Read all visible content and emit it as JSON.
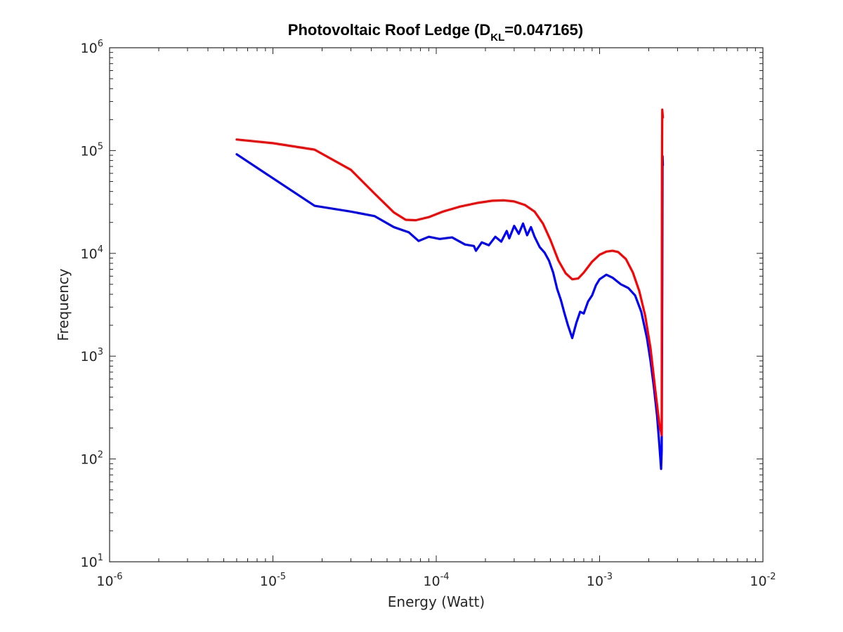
{
  "chart_data": {
    "type": "line",
    "title": {
      "main": "Photovoltaic Roof Ledge (D",
      "subscript": "KL",
      "tail": "=0.047165)"
    },
    "xlabel": "Energy (Watt)",
    "ylabel": "Frequency",
    "xscale": "log",
    "yscale": "log",
    "xlim": [
      1e-06,
      0.01
    ],
    "ylim": [
      10,
      1000000
    ],
    "x_ticks": [
      {
        "base": "10",
        "exp": "-6",
        "value": 1e-06
      },
      {
        "base": "10",
        "exp": "-5",
        "value": 1e-05
      },
      {
        "base": "10",
        "exp": "-4",
        "value": 0.0001
      },
      {
        "base": "10",
        "exp": "-3",
        "value": 0.001
      },
      {
        "base": "10",
        "exp": "-2",
        "value": 0.01
      }
    ],
    "y_ticks": [
      {
        "base": "10",
        "exp": "1",
        "value": 10
      },
      {
        "base": "10",
        "exp": "2",
        "value": 100
      },
      {
        "base": "10",
        "exp": "3",
        "value": 1000
      },
      {
        "base": "10",
        "exp": "4",
        "value": 10000
      },
      {
        "base": "10",
        "exp": "5",
        "value": 100000
      },
      {
        "base": "10",
        "exp": "6",
        "value": 1000000
      }
    ],
    "grid": false,
    "legend": "none",
    "series": [
      {
        "color": "#0000ff",
        "points": [
          [
            6e-06,
            92000
          ],
          [
            1.8e-05,
            29000
          ],
          [
            3e-05,
            25500
          ],
          [
            4.2e-05,
            23000
          ],
          [
            5.5e-05,
            18000
          ],
          [
            6.8e-05,
            16000
          ],
          [
            7.8e-05,
            13200
          ],
          [
            9e-05,
            14500
          ],
          [
            0.000105,
            13800
          ],
          [
            0.000125,
            14300
          ],
          [
            0.00015,
            12200
          ],
          [
            0.00017,
            11800
          ],
          [
            0.000175,
            10600
          ],
          [
            0.00019,
            12800
          ],
          [
            0.00021,
            12000
          ],
          [
            0.00023,
            14500
          ],
          [
            0.00025,
            13000
          ],
          [
            0.00027,
            16500
          ],
          [
            0.00028,
            14000
          ],
          [
            0.0003,
            18500
          ],
          [
            0.00032,
            15500
          ],
          [
            0.00034,
            19500
          ],
          [
            0.00036,
            15000
          ],
          [
            0.00038,
            18000
          ],
          [
            0.0004,
            14500
          ],
          [
            0.00043,
            11500
          ],
          [
            0.00046,
            10200
          ],
          [
            0.00049,
            8500
          ],
          [
            0.00052,
            6500
          ],
          [
            0.00055,
            4500
          ],
          [
            0.00058,
            3500
          ],
          [
            0.00061,
            2600
          ],
          [
            0.00064,
            2000
          ],
          [
            0.00068,
            1500
          ],
          [
            0.00072,
            2100
          ],
          [
            0.00076,
            2700
          ],
          [
            0.0008,
            2600
          ],
          [
            0.00085,
            3400
          ],
          [
            0.0009,
            3900
          ],
          [
            0.00095,
            4900
          ],
          [
            0.001,
            5600
          ],
          [
            0.0011,
            6200
          ],
          [
            0.0012,
            5800
          ],
          [
            0.00135,
            5000
          ],
          [
            0.0015,
            4600
          ],
          [
            0.00165,
            3900
          ],
          [
            0.0018,
            2700
          ],
          [
            0.00195,
            1500
          ],
          [
            0.00205,
            900
          ],
          [
            0.00215,
            500
          ],
          [
            0.00225,
            260
          ],
          [
            0.00232,
            140
          ],
          [
            0.00238,
            80
          ],
          [
            0.0024,
            120
          ],
          [
            0.00242,
            5300
          ],
          [
            0.00243,
            88000
          ],
          [
            0.00244,
            72000
          ]
        ]
      },
      {
        "color": "#ff0000",
        "points": [
          [
            6e-06,
            128000
          ],
          [
            1e-05,
            118000
          ],
          [
            1.8e-05,
            102000
          ],
          [
            3e-05,
            65000
          ],
          [
            4.2e-05,
            38000
          ],
          [
            5.5e-05,
            25000
          ],
          [
            6.5e-05,
            21200
          ],
          [
            7.5e-05,
            21000
          ],
          [
            9e-05,
            22500
          ],
          [
            0.00011,
            25500
          ],
          [
            0.00014,
            28500
          ],
          [
            0.00018,
            31000
          ],
          [
            0.00022,
            32500
          ],
          [
            0.00026,
            32800
          ],
          [
            0.0003,
            32000
          ],
          [
            0.00035,
            29500
          ],
          [
            0.0004,
            25500
          ],
          [
            0.00045,
            19500
          ],
          [
            0.0005,
            13500
          ],
          [
            0.00056,
            8500
          ],
          [
            0.00062,
            6400
          ],
          [
            0.00068,
            5600
          ],
          [
            0.00074,
            5700
          ],
          [
            0.0008,
            6500
          ],
          [
            0.0009,
            8300
          ],
          [
            0.001,
            9700
          ],
          [
            0.0011,
            10400
          ],
          [
            0.0012,
            10600
          ],
          [
            0.0013,
            10300
          ],
          [
            0.00145,
            8800
          ],
          [
            0.0016,
            6500
          ],
          [
            0.00175,
            4300
          ],
          [
            0.0019,
            2500
          ],
          [
            0.00205,
            1200
          ],
          [
            0.0022,
            450
          ],
          [
            0.00232,
            220
          ],
          [
            0.0024,
            170
          ],
          [
            0.00241,
            60000
          ],
          [
            0.00242,
            250000
          ],
          [
            0.00244,
            210000
          ]
        ]
      }
    ]
  }
}
